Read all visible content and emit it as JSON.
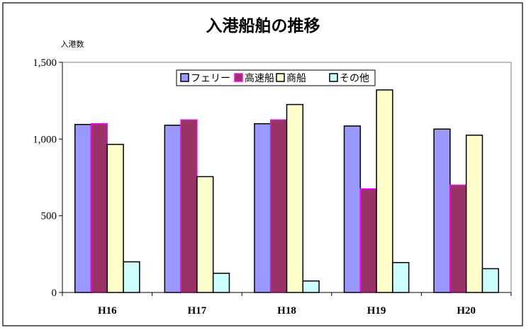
{
  "chart_data": {
    "type": "bar",
    "title": "入港船舶の推移",
    "ylabel": "入港数",
    "xlabel": "",
    "categories": [
      "H16",
      "H17",
      "H18",
      "H19",
      "H20"
    ],
    "yticks": [
      "0",
      "500",
      "1,000",
      "1,500"
    ],
    "ytick_values": [
      0,
      500,
      1000,
      1500
    ],
    "ylim": [
      0,
      1500
    ],
    "grid": false,
    "legend_position": "top-right",
    "series": [
      {
        "name": "フェリー",
        "values": [
          1095,
          1090,
          1100,
          1085,
          1065
        ],
        "color": "#9999ff",
        "edge": "#000000"
      },
      {
        "name": "高速船",
        "values": [
          1100,
          1125,
          1125,
          675,
          700
        ],
        "color": "#993366",
        "edge": "#ff00ff"
      },
      {
        "name": "商船",
        "values": [
          965,
          755,
          1225,
          1320,
          1025
        ],
        "color": "#ffffcc",
        "edge": "#000000"
      },
      {
        "name": "その他",
        "values": [
          200,
          125,
          75,
          195,
          155
        ],
        "color": "#ccffff",
        "edge": "#000000"
      }
    ]
  }
}
